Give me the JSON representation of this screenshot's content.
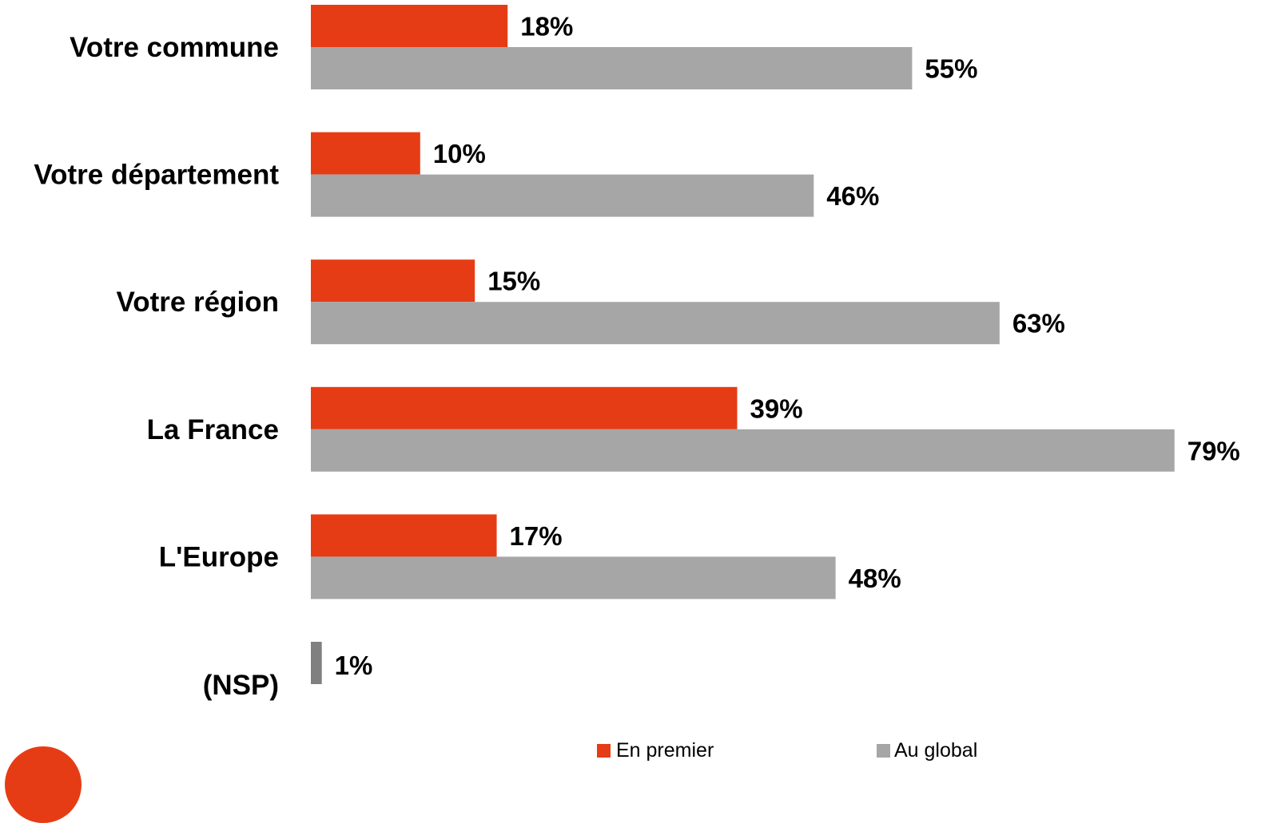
{
  "chart_data": {
    "type": "bar",
    "orientation": "horizontal",
    "categories": [
      "Votre commune",
      "Votre département",
      "Votre région",
      "La France",
      "L'Europe",
      "(NSP)"
    ],
    "series": [
      {
        "name": "En premier",
        "color": "#e63c16",
        "values": [
          18,
          10,
          15,
          39,
          17,
          null
        ]
      },
      {
        "name": "Au global",
        "color": "#a6a6a6",
        "values": [
          55,
          46,
          63,
          79,
          48,
          null
        ]
      }
    ],
    "nsp": {
      "value": 1,
      "label": "1%",
      "color": "#808080"
    },
    "value_labels": {
      "En premier": [
        "18%",
        "10%",
        "15%",
        "39%",
        "17%"
      ],
      "Au global": [
        "55%",
        "46%",
        "63%",
        "79%",
        "48%"
      ]
    },
    "xlim": [
      0,
      80
    ],
    "grid": false,
    "legend_position": "bottom"
  },
  "logo": {
    "color": "#e63c16"
  }
}
